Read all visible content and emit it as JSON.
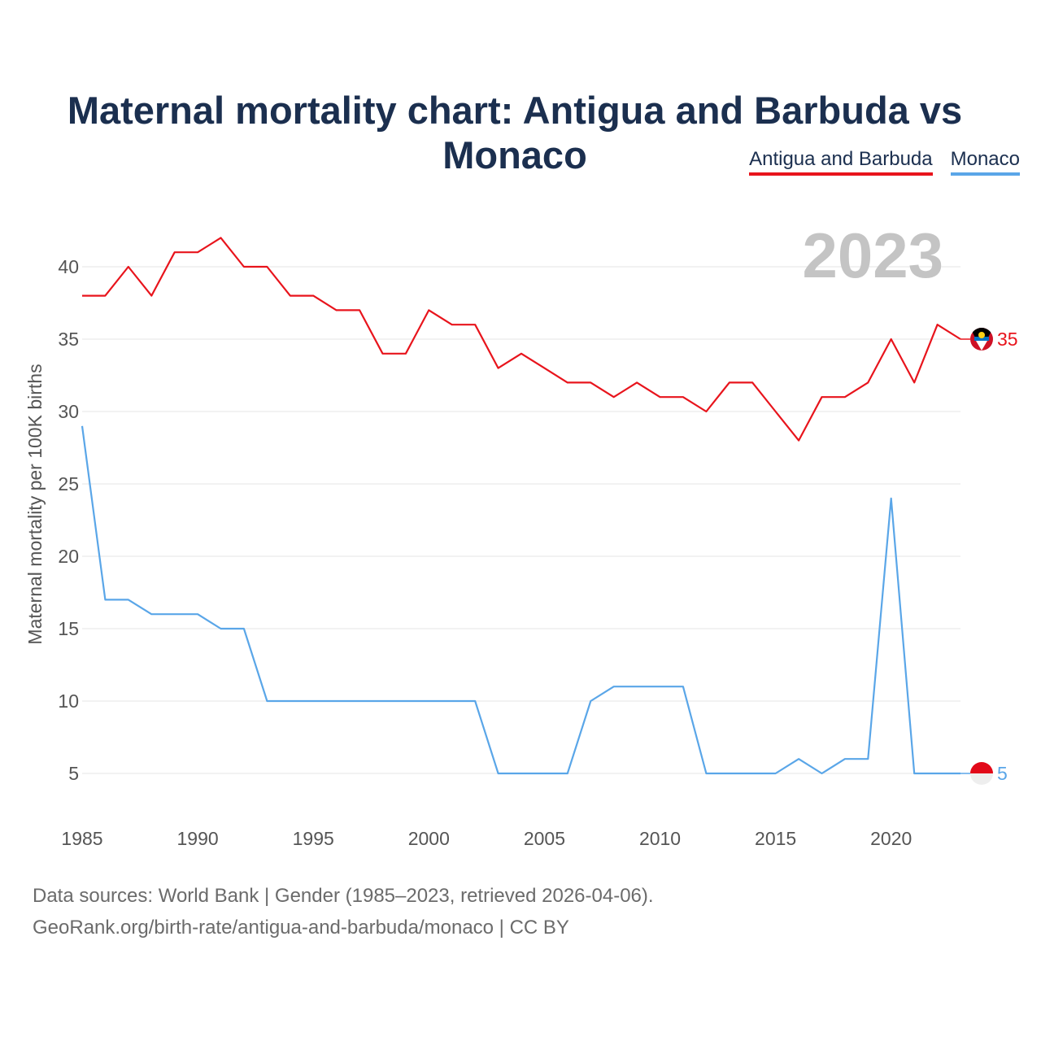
{
  "chart_data": {
    "type": "line",
    "title": "Maternal mortality chart: Antigua and Barbuda vs Monaco",
    "ylabel": "Maternal mortality per 100K births",
    "xlabel": "",
    "year_label": "2023",
    "x": [
      1985,
      1986,
      1987,
      1988,
      1989,
      1990,
      1991,
      1992,
      1993,
      1994,
      1995,
      1996,
      1997,
      1998,
      1999,
      2000,
      2001,
      2002,
      2003,
      2004,
      2005,
      2006,
      2007,
      2008,
      2009,
      2010,
      2011,
      2012,
      2013,
      2014,
      2015,
      2016,
      2017,
      2018,
      2019,
      2020,
      2021,
      2022,
      2023
    ],
    "x_ticks": [
      "1985",
      "1990",
      "1995",
      "2000",
      "2005",
      "2010",
      "2015",
      "2020"
    ],
    "y_ticks": [
      "5",
      "10",
      "15",
      "20",
      "25",
      "30",
      "35",
      "40"
    ],
    "ylim": [
      2,
      43
    ],
    "xlim": [
      1985,
      2023
    ],
    "series": [
      {
        "name": "Antigua and Barbuda",
        "color": "#e8141c",
        "end_label": "35",
        "flag_icon": "antigua-flag-icon",
        "values": [
          38,
          38,
          40,
          38,
          41,
          41,
          42,
          40,
          40,
          38,
          38,
          37,
          37,
          34,
          34,
          37,
          36,
          36,
          33,
          34,
          33,
          32,
          32,
          31,
          32,
          31,
          31,
          30,
          32,
          32,
          30,
          28,
          31,
          31,
          32,
          35,
          32,
          36,
          35
        ]
      },
      {
        "name": "Monaco",
        "color": "#5aa6e8",
        "end_label": "5",
        "flag_icon": "monaco-flag-icon",
        "values": [
          29,
          17,
          17,
          16,
          16,
          16,
          15,
          15,
          10,
          10,
          10,
          10,
          10,
          10,
          10,
          10,
          10,
          10,
          5,
          5,
          5,
          5,
          10,
          11,
          11,
          11,
          11,
          5,
          5,
          5,
          5,
          6,
          5,
          6,
          6,
          24,
          5,
          5,
          5
        ]
      }
    ]
  },
  "legend": {
    "items": [
      "Antigua and Barbuda",
      "Monaco"
    ]
  },
  "source": {
    "line1": "Data sources: World Bank | Gender (1985–2023, retrieved 2026-04-06).",
    "line2": "GeoRank.org/birth-rate/antigua-and-barbuda/monaco | CC BY"
  }
}
